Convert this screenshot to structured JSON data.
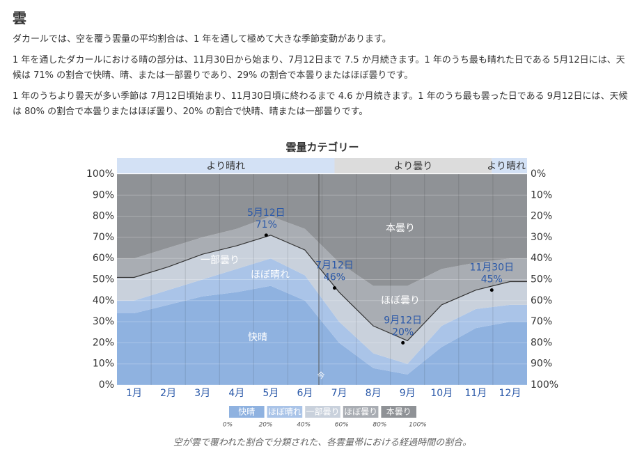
{
  "heading": "雲",
  "paragraphs": [
    "ダカールでは、空を覆う雲量の平均割合は、1 年を通して極めて大きな季節変動があります。",
    "1 年を通したダカールにおける晴の部分は、11月30日から始まり、7月12日まで 7.5 か月続きます。1 年のうち最も晴れた日である 5月12日には、天候は 71% の割合で快晴、晴、または一部曇りであり、29% の割合で本曇りまたはほぼ曇りです。",
    "1 年のうちより曇天が多い季節は 7月12日頃始まり、11月30日頃に終わるまで 4.6 か月続きます。1 年のうち最も曇った日である 9月12日には、天候は 80% の割合で本曇りまたはほぼ曇り、20% の割合で快晴、晴または一部曇りです。"
  ],
  "chart_data": {
    "type": "stacked_area",
    "title": "雲量カテゴリー",
    "season_bands": [
      {
        "label": "より晴れ",
        "color": "#d3e1f5"
      },
      {
        "label": "より曇り",
        "color": "#dcdcdc"
      },
      {
        "label": "より晴れ",
        "color": "#d3e1f5"
      }
    ],
    "categories": [
      "1月",
      "2月",
      "3月",
      "4月",
      "5月",
      "6月",
      "7月",
      "8月",
      "9月",
      "10月",
      "11月",
      "12月"
    ],
    "series": [
      {
        "name": "快晴",
        "color": "#8fb2e0",
        "values": [
          34,
          38,
          42,
          44,
          47,
          40,
          20,
          8,
          5,
          18,
          27,
          30
        ]
      },
      {
        "name": "ほぼ晴れ",
        "color": "#aac4e8",
        "values": [
          6,
          7,
          8,
          11,
          13,
          12,
          10,
          7,
          5,
          10,
          9,
          8
        ]
      },
      {
        "name": "一部曇り",
        "color": "#c9d1dc",
        "values": [
          11,
          11,
          12,
          11,
          11,
          12,
          14,
          13,
          11,
          10,
          9,
          11
        ]
      },
      {
        "name": "ほぼ曇り",
        "color": "#a9adb3",
        "values": [
          9,
          9,
          8,
          8,
          9,
          10,
          14,
          19,
          26,
          17,
          13,
          11
        ]
      },
      {
        "name": "本曇り",
        "color": "#8f9296",
        "values": [
          40,
          35,
          30,
          26,
          20,
          26,
          42,
          53,
          53,
          45,
          42,
          40
        ]
      }
    ],
    "annotations": [
      {
        "date": "5月12日",
        "value": 71,
        "label": "71%"
      },
      {
        "date": "7月12日",
        "value": 46,
        "label": "46%"
      },
      {
        "date": "9月12日",
        "value": 20,
        "label": "20%"
      },
      {
        "date": "11月30日",
        "value": 45,
        "label": "45%"
      }
    ],
    "now_label": "今",
    "ylim": [
      0,
      100
    ],
    "yticks": [
      {
        "value": 0,
        "label": "0%"
      },
      {
        "value": 10,
        "label": "10%"
      },
      {
        "value": 20,
        "label": "20%"
      },
      {
        "value": 30,
        "label": "30%"
      },
      {
        "value": 40,
        "label": "40%"
      },
      {
        "value": 50,
        "label": "50%"
      },
      {
        "value": 60,
        "label": "60%"
      },
      {
        "value": 70,
        "label": "70%"
      },
      {
        "value": 80,
        "label": "80%"
      },
      {
        "value": 90,
        "label": "90%"
      },
      {
        "value": 100,
        "label": "100%"
      }
    ],
    "y2lim": [
      100,
      0
    ],
    "y2ticks": [
      {
        "value": 0,
        "label": "0%"
      },
      {
        "value": 10,
        "label": "10%"
      },
      {
        "value": 20,
        "label": "20%"
      },
      {
        "value": 30,
        "label": "30%"
      },
      {
        "value": 40,
        "label": "40%"
      },
      {
        "value": 50,
        "label": "50%"
      },
      {
        "value": 60,
        "label": "60%"
      },
      {
        "value": 70,
        "label": "70%"
      },
      {
        "value": 80,
        "label": "80%"
      },
      {
        "value": 90,
        "label": "90%"
      },
      {
        "value": 100,
        "label": "100%"
      }
    ],
    "grid": true,
    "legend_scale": [
      {
        "value": 0,
        "label": "0%"
      },
      {
        "value": 20,
        "label": "20%"
      },
      {
        "value": 40,
        "label": "40%"
      },
      {
        "value": 60,
        "label": "60%"
      },
      {
        "value": 80,
        "label": "80%"
      },
      {
        "value": 100,
        "label": "100%"
      }
    ],
    "caption": "空が雲で覆われた割合で分類された、各雲量帯における経過時間の割合。"
  }
}
